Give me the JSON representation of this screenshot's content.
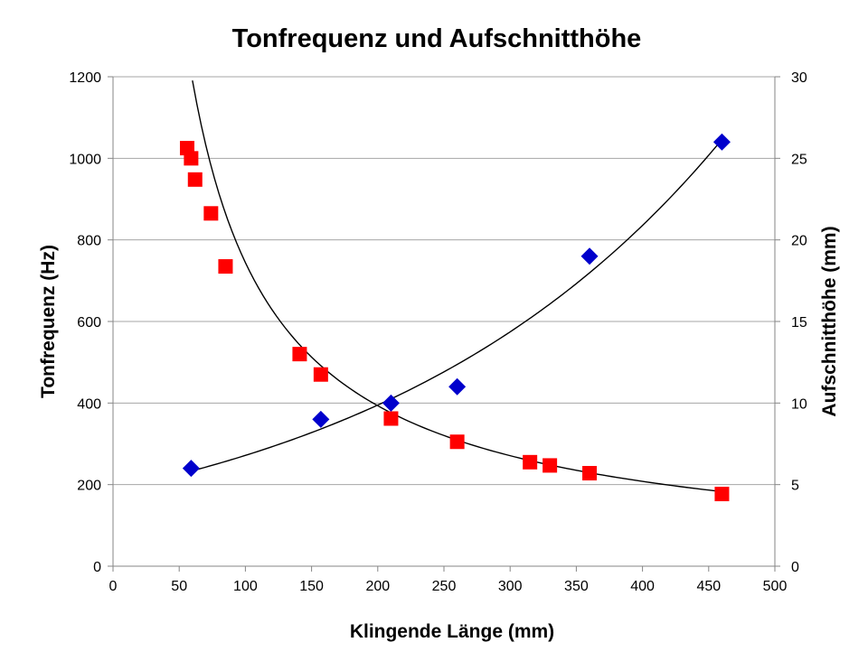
{
  "chart_data": {
    "type": "scatter",
    "title": "Tonfrequenz und Aufschnitthöhe",
    "xlabel": "Klingende Länge (mm)",
    "ylabel": "Tonfrequenz (Hz)",
    "y2label": "Aufschnitthöhe (mm)",
    "xlim": [
      0,
      500
    ],
    "ylim": [
      0,
      1200
    ],
    "y2lim": [
      0,
      30
    ],
    "x_ticks": [
      0,
      50,
      100,
      150,
      200,
      250,
      300,
      350,
      400,
      450,
      500
    ],
    "y_ticks": [
      0,
      200,
      400,
      600,
      800,
      1000,
      1200
    ],
    "y2_ticks": [
      0,
      5,
      10,
      15,
      20,
      25,
      30
    ],
    "grid": "horizontal",
    "legend": "none",
    "series": [
      {
        "axis": "left",
        "marker": "square",
        "color": "#ff0000",
        "points": [
          {
            "x": 56,
            "y": 1025
          },
          {
            "x": 59,
            "y": 1000
          },
          {
            "x": 62,
            "y": 948
          },
          {
            "x": 74,
            "y": 865
          },
          {
            "x": 85,
            "y": 735
          },
          {
            "x": 141,
            "y": 520
          },
          {
            "x": 157,
            "y": 470
          },
          {
            "x": 210,
            "y": 362
          },
          {
            "x": 260,
            "y": 305
          },
          {
            "x": 315,
            "y": 255
          },
          {
            "x": 330,
            "y": 247
          },
          {
            "x": 360,
            "y": 228
          },
          {
            "x": 460,
            "y": 177
          }
        ]
      },
      {
        "axis": "right",
        "marker": "diamond",
        "color": "#0000cc",
        "points": [
          {
            "x": 59,
            "y": 6
          },
          {
            "x": 157,
            "y": 9
          },
          {
            "x": 210,
            "y": 10
          },
          {
            "x": 260,
            "y": 11
          },
          {
            "x": 360,
            "y": 19
          },
          {
            "x": 460,
            "y": 26
          }
        ]
      }
    ],
    "trendlines": [
      {
        "series": 0,
        "kind": "power",
        "a": 51500,
        "b": -0.92,
        "x_from": 60,
        "x_to": 460,
        "color": "#000000"
      },
      {
        "series": 1,
        "kind": "exponential",
        "a": 4.67,
        "k": 0.003745,
        "x_from": 59,
        "x_to": 460,
        "color": "#000000"
      }
    ]
  }
}
